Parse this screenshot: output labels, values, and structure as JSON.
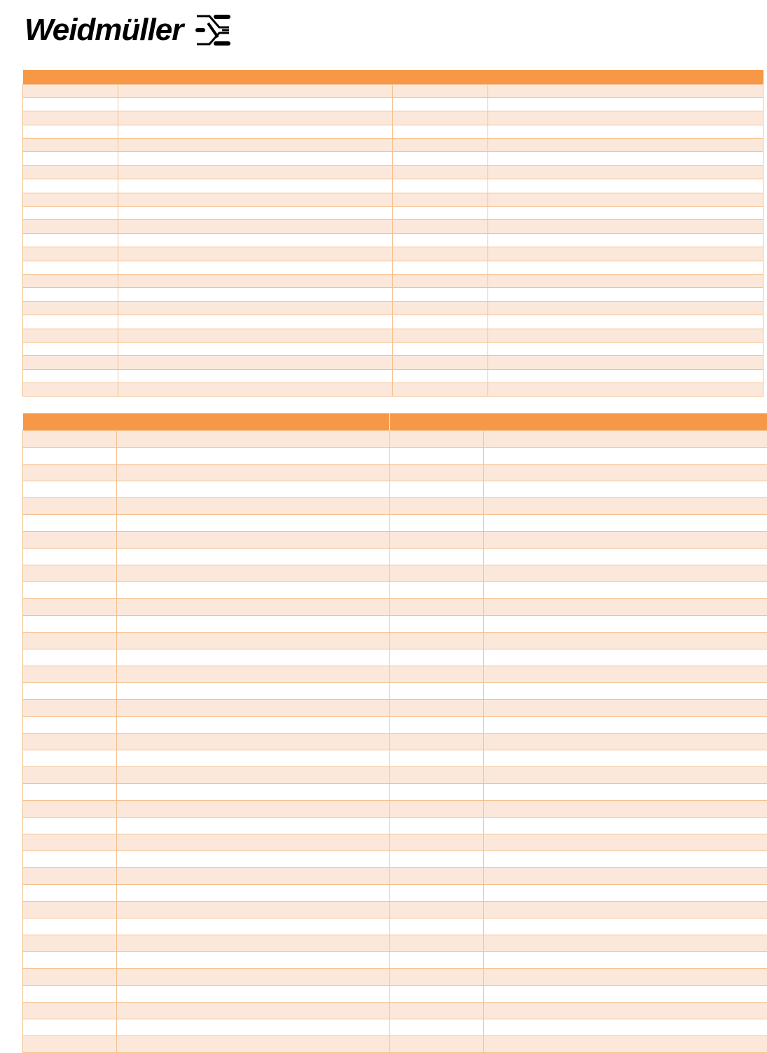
{
  "logo": {
    "text": "Weidmüller",
    "icon": "weidmuller-cross-icon"
  },
  "colors": {
    "header": "#f79846",
    "row_alt": "#fbe8da",
    "border": "#f6c08e"
  },
  "table1": {
    "header": [
      ""
    ],
    "rows": []
  },
  "table2": {
    "header": [
      "",
      ""
    ],
    "rows": []
  }
}
